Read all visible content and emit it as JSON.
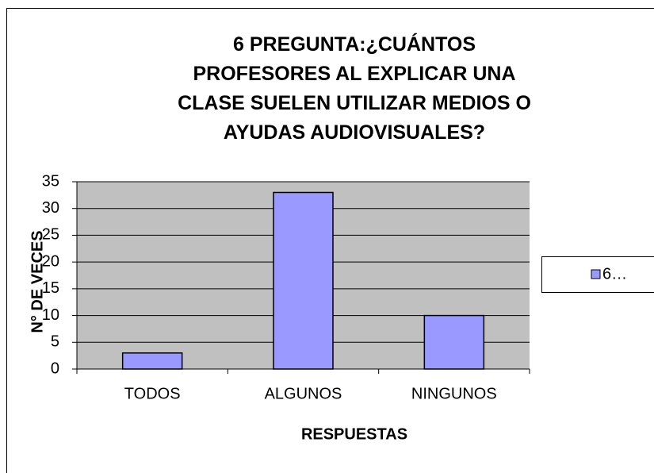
{
  "chart_data": {
    "type": "bar",
    "title": "6 PREGUNTA:¿CUÁNTOS PROFESORES AL EXPLICAR UNA CLASE SUELEN UTILIZAR MEDIOS O AYUDAS AUDIOVISUALES?",
    "x_label": "RESPUESTAS",
    "y_label": "N° DE VECES",
    "categories": [
      "TODOS",
      "ALGUNOS",
      "NINGUNOS"
    ],
    "series": [
      {
        "name": "6…",
        "color": "#9999ff",
        "values": [
          3,
          33,
          10
        ]
      }
    ],
    "ylim": [
      0,
      35
    ],
    "yticks": [
      0,
      5,
      10,
      15,
      20,
      25,
      30,
      35
    ],
    "grid": true,
    "legend": "right"
  }
}
